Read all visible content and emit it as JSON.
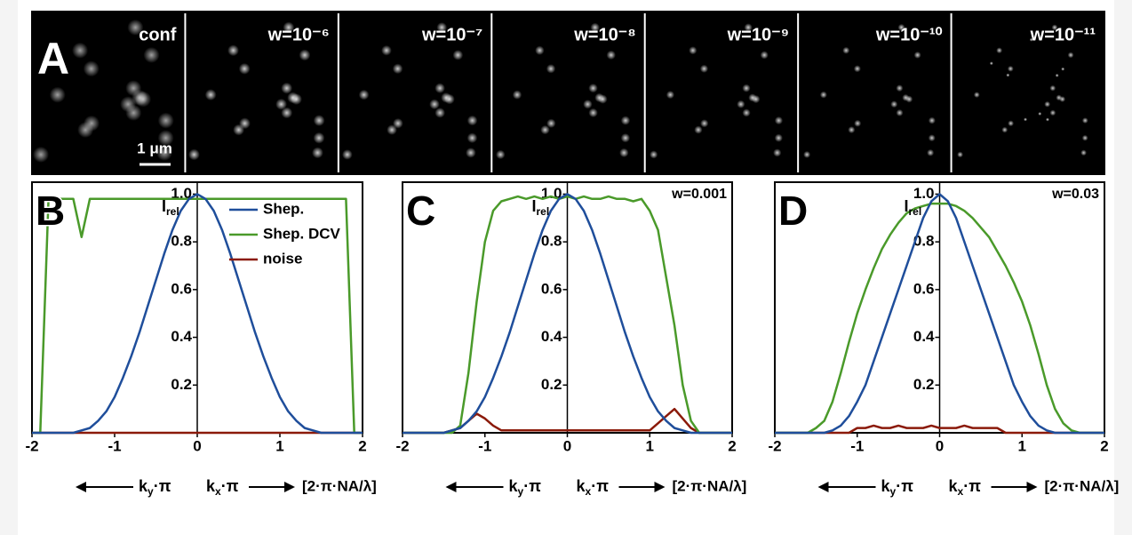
{
  "image_panels": {
    "label": "A",
    "titles": [
      "conf",
      "w=10⁻⁶",
      "w=10⁻⁷",
      "w=10⁻⁸",
      "w=10⁻⁹",
      "w=10⁻¹⁰",
      "w=10⁻¹¹"
    ],
    "scale_bar": "1 μm"
  },
  "chart_data": [
    {
      "type": "line",
      "panel": "B",
      "ylabel": "I",
      "ylabel_sub": "rel",
      "xlabel_left": "k",
      "xlabel_left_sub": "y",
      "xlabel_left_tail": "·π",
      "xlabel_right": "k",
      "xlabel_right_sub": "x",
      "xlabel_right_tail": "·π",
      "xlabel_unit": "[2·π·NA/λ]",
      "xlim": [
        -2,
        2
      ],
      "ylim": [
        0,
        1.05
      ],
      "xticks": [
        -2,
        -1,
        0,
        1,
        2
      ],
      "yticks": [
        0.2,
        0.4,
        0.6,
        0.8,
        {
          "value": 1,
          "label": "1.0"
        }
      ],
      "x": [
        -2,
        -1.9,
        -1.8,
        -1.7,
        -1.6,
        -1.5,
        -1.4,
        -1.3,
        -1.2,
        -1.1,
        -1,
        -0.9,
        -0.8,
        -0.7,
        -0.6,
        -0.5,
        -0.4,
        -0.3,
        -0.2,
        -0.1,
        0,
        0.1,
        0.2,
        0.3,
        0.4,
        0.5,
        0.6,
        0.7,
        0.8,
        0.9,
        1,
        1.1,
        1.2,
        1.3,
        1.4,
        1.5,
        1.6,
        1.7,
        1.8,
        1.9,
        2
      ],
      "series": [
        {
          "name": "Shep.",
          "color": "#1f4e9b",
          "values": [
            0,
            0,
            0,
            0,
            0,
            0,
            0.01,
            0.02,
            0.05,
            0.09,
            0.15,
            0.23,
            0.32,
            0.42,
            0.53,
            0.64,
            0.75,
            0.85,
            0.93,
            0.98,
            1,
            0.98,
            0.93,
            0.85,
            0.75,
            0.64,
            0.53,
            0.42,
            0.32,
            0.23,
            0.15,
            0.09,
            0.05,
            0.02,
            0.01,
            0,
            0,
            0,
            0,
            0,
            0
          ]
        },
        {
          "name": "Shep. DCV",
          "color": "#4a9a2a",
          "values": [
            0,
            0,
            0.98,
            0.98,
            0.98,
            0.98,
            0.82,
            0.98,
            0.98,
            0.98,
            0.98,
            0.98,
            0.98,
            0.98,
            0.98,
            0.98,
            0.98,
            0.98,
            0.98,
            0.98,
            0.98,
            0.98,
            0.98,
            0.98,
            0.98,
            0.98,
            0.98,
            0.98,
            0.98,
            0.98,
            0.98,
            0.98,
            0.98,
            0.98,
            0.98,
            0.98,
            0.98,
            0.98,
            0.98,
            0,
            0
          ]
        },
        {
          "name": "noise",
          "color": "#8b1a0a",
          "values": [
            0,
            0,
            0,
            0,
            0,
            0,
            0,
            0,
            0,
            0,
            0,
            0,
            0,
            0,
            0,
            0,
            0,
            0,
            0,
            0,
            0,
            0,
            0,
            0,
            0,
            0,
            0,
            0,
            0,
            0,
            0,
            0,
            0,
            0,
            0,
            0,
            0,
            0,
            0,
            0,
            0
          ]
        }
      ]
    },
    {
      "type": "line",
      "panel": "C",
      "annotation": "w=0.001",
      "ylabel": "I",
      "ylabel_sub": "rel",
      "xlabel_left": "k",
      "xlabel_left_sub": "y",
      "xlabel_left_tail": "·π",
      "xlabel_right": "k",
      "xlabel_right_sub": "x",
      "xlabel_right_tail": "·π",
      "xlabel_unit": "[2·π·NA/λ]",
      "xlim": [
        -2,
        2
      ],
      "ylim": [
        0,
        1.05
      ],
      "xticks": [
        -2,
        -1,
        0,
        1,
        2
      ],
      "yticks": [
        0.2,
        0.4,
        0.6,
        0.8,
        {
          "value": 1,
          "label": "1.0"
        }
      ],
      "x": [
        -2,
        -1.9,
        -1.8,
        -1.7,
        -1.6,
        -1.5,
        -1.4,
        -1.3,
        -1.2,
        -1.1,
        -1,
        -0.9,
        -0.8,
        -0.7,
        -0.6,
        -0.5,
        -0.4,
        -0.3,
        -0.2,
        -0.1,
        0,
        0.1,
        0.2,
        0.3,
        0.4,
        0.5,
        0.6,
        0.7,
        0.8,
        0.9,
        1,
        1.1,
        1.2,
        1.3,
        1.4,
        1.5,
        1.6,
        1.7,
        1.8,
        1.9,
        2
      ],
      "series": [
        {
          "color": "#1f4e9b",
          "values": [
            0,
            0,
            0,
            0,
            0,
            0,
            0.01,
            0.02,
            0.05,
            0.09,
            0.15,
            0.23,
            0.32,
            0.42,
            0.53,
            0.64,
            0.75,
            0.85,
            0.93,
            0.98,
            1,
            0.98,
            0.93,
            0.85,
            0.75,
            0.64,
            0.53,
            0.42,
            0.32,
            0.23,
            0.15,
            0.09,
            0.05,
            0.02,
            0.01,
            0,
            0,
            0,
            0,
            0,
            0
          ]
        },
        {
          "color": "#4a9a2a",
          "values": [
            0,
            0,
            0,
            0,
            0,
            0,
            0,
            0.03,
            0.25,
            0.55,
            0.8,
            0.93,
            0.97,
            0.98,
            0.99,
            0.98,
            0.99,
            0.98,
            0.99,
            0.98,
            0.99,
            0.98,
            0.99,
            0.98,
            0.98,
            0.99,
            0.98,
            0.98,
            0.97,
            0.98,
            0.93,
            0.85,
            0.65,
            0.45,
            0.2,
            0.05,
            0,
            0,
            0,
            0,
            0
          ]
        },
        {
          "color": "#8b1a0a",
          "values": [
            0,
            0,
            0,
            0,
            0,
            0,
            0.01,
            0.02,
            0.05,
            0.08,
            0.06,
            0.03,
            0.01,
            0.01,
            0.01,
            0.01,
            0.01,
            0.01,
            0.01,
            0.01,
            0.01,
            0.01,
            0.01,
            0.01,
            0.01,
            0.01,
            0.01,
            0.01,
            0.01,
            0.01,
            0.01,
            0.04,
            0.07,
            0.1,
            0.06,
            0.02,
            0,
            0,
            0,
            0,
            0
          ]
        }
      ]
    },
    {
      "type": "line",
      "panel": "D",
      "annotation": "w=0.03",
      "ylabel": "I",
      "ylabel_sub": "rel",
      "xlabel_left": "k",
      "xlabel_left_sub": "y",
      "xlabel_left_tail": "·π",
      "xlabel_right": "k",
      "xlabel_right_sub": "x",
      "xlabel_right_tail": "·π",
      "xlabel_unit": "[2·π·NA/λ]",
      "xlim": [
        -2,
        2
      ],
      "ylim": [
        0,
        1.05
      ],
      "xticks": [
        -2,
        -1,
        0,
        1,
        2
      ],
      "yticks": [
        0.2,
        0.4,
        0.6,
        0.8,
        {
          "value": 1,
          "label": "1.0"
        }
      ],
      "x": [
        -2,
        -1.9,
        -1.8,
        -1.7,
        -1.6,
        -1.5,
        -1.4,
        -1.3,
        -1.2,
        -1.1,
        -1,
        -0.9,
        -0.8,
        -0.7,
        -0.6,
        -0.5,
        -0.4,
        -0.3,
        -0.2,
        -0.1,
        0,
        0.1,
        0.2,
        0.3,
        0.4,
        0.5,
        0.6,
        0.7,
        0.8,
        0.9,
        1,
        1.1,
        1.2,
        1.3,
        1.4,
        1.5,
        1.6,
        1.7,
        1.8,
        1.9,
        2
      ],
      "series": [
        {
          "color": "#1f4e9b",
          "values": [
            0,
            0,
            0,
            0,
            0,
            0,
            0,
            0.01,
            0.03,
            0.07,
            0.13,
            0.2,
            0.3,
            0.4,
            0.5,
            0.6,
            0.7,
            0.8,
            0.9,
            0.97,
            1,
            0.97,
            0.9,
            0.8,
            0.7,
            0.6,
            0.5,
            0.4,
            0.3,
            0.2,
            0.13,
            0.07,
            0.03,
            0.01,
            0,
            0,
            0,
            0,
            0,
            0,
            0
          ]
        },
        {
          "color": "#4a9a2a",
          "values": [
            0,
            0,
            0,
            0,
            0,
            0.02,
            0.05,
            0.13,
            0.25,
            0.38,
            0.5,
            0.6,
            0.69,
            0.77,
            0.83,
            0.88,
            0.92,
            0.94,
            0.95,
            0.96,
            0.96,
            0.96,
            0.95,
            0.93,
            0.9,
            0.86,
            0.82,
            0.76,
            0.7,
            0.63,
            0.55,
            0.45,
            0.33,
            0.2,
            0.1,
            0.04,
            0.01,
            0,
            0,
            0,
            0
          ]
        },
        {
          "color": "#8b1a0a",
          "values": [
            0,
            0,
            0,
            0,
            0,
            0,
            0,
            0,
            0,
            0,
            0.02,
            0.02,
            0.03,
            0.02,
            0.02,
            0.03,
            0.02,
            0.02,
            0.02,
            0.03,
            0.02,
            0.02,
            0.02,
            0.03,
            0.02,
            0.02,
            0.02,
            0.02,
            0,
            0,
            0,
            0,
            0,
            0,
            0,
            0,
            0,
            0,
            0,
            0,
            0
          ]
        }
      ]
    }
  ]
}
